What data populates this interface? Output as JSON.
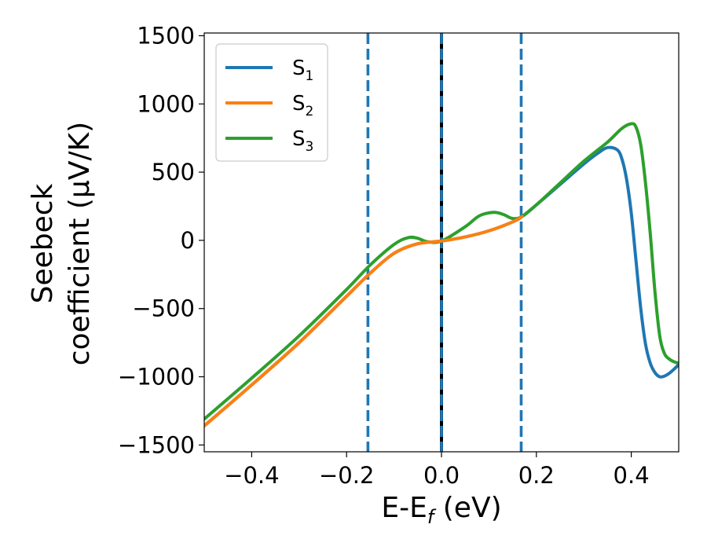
{
  "chart_data": {
    "type": "line",
    "xlabel": "E-E",
    "xlabel_sub": "f",
    "xlabel_unit": " (eV)",
    "ylabel_line1": "Seebeck",
    "ylabel_line2": "coefficient  (μV/K)",
    "xlim": [
      -0.5,
      0.5
    ],
    "ylim": [
      -1550,
      1520
    ],
    "xticks": [
      -0.4,
      -0.2,
      0.0,
      0.2,
      0.4
    ],
    "xtick_labels": [
      "−0.4",
      "−0.2",
      "0.0",
      "0.2",
      "0.4"
    ],
    "yticks": [
      -1500,
      -1000,
      -500,
      0,
      500,
      1000,
      1500
    ],
    "ytick_labels": [
      "−1500",
      "−1000",
      "−500",
      "0",
      "500",
      "1000",
      "1500"
    ],
    "grid": false,
    "legend_placement": "top-left",
    "series": [
      {
        "name": "S",
        "name_sub": "1",
        "color": "#1f77b4",
        "x": [
          -0.5,
          -0.4,
          -0.3,
          -0.2,
          -0.15,
          -0.1,
          -0.05,
          0.0,
          0.05,
          0.1,
          0.15,
          0.17,
          0.2,
          0.25,
          0.3,
          0.33,
          0.35,
          0.37,
          0.38,
          0.39,
          0.4,
          0.41,
          0.42,
          0.43,
          0.44,
          0.45,
          0.46,
          0.47,
          0.48,
          0.49,
          0.5
        ],
        "y": [
          -1360,
          -1060,
          -750,
          -410,
          -240,
          -95,
          -25,
          -5,
          25,
          70,
          135,
          175,
          260,
          410,
          560,
          640,
          680,
          665,
          600,
          450,
          200,
          -150,
          -500,
          -760,
          -900,
          -970,
          -1000,
          -995,
          -975,
          -945,
          -910
        ]
      },
      {
        "name": "S",
        "name_sub": "2",
        "color": "#ff7f0e",
        "x": [
          -0.5,
          -0.4,
          -0.3,
          -0.2,
          -0.15,
          -0.1,
          -0.05,
          0.0,
          0.05,
          0.1,
          0.15,
          0.17
        ],
        "y": [
          -1360,
          -1060,
          -750,
          -410,
          -240,
          -95,
          -25,
          -5,
          25,
          70,
          135,
          175
        ]
      },
      {
        "name": "S",
        "name_sub": "3",
        "color": "#2ca02c",
        "x": [
          -0.5,
          -0.4,
          -0.3,
          -0.2,
          -0.15,
          -0.1,
          -0.07,
          -0.05,
          -0.03,
          0.0,
          0.05,
          0.08,
          0.11,
          0.13,
          0.15,
          0.17,
          0.2,
          0.25,
          0.3,
          0.35,
          0.38,
          0.4,
          0.41,
          0.42,
          0.43,
          0.44,
          0.45,
          0.46,
          0.47,
          0.48,
          0.49,
          0.5
        ],
        "y": [
          -1310,
          -1010,
          -700,
          -360,
          -180,
          -30,
          20,
          15,
          -10,
          -5,
          100,
          180,
          205,
          190,
          160,
          175,
          260,
          420,
          580,
          720,
          820,
          855,
          830,
          700,
          420,
          50,
          -380,
          -700,
          -830,
          -870,
          -890,
          -900
        ]
      }
    ],
    "vertical_lines": [
      {
        "x": -0.155,
        "color": "#1f77b4",
        "style": "dashed"
      },
      {
        "x": 0.0,
        "color": "#000000",
        "style": "solid"
      },
      {
        "x": 0.0,
        "color": "#1f77b4",
        "style": "dashed"
      },
      {
        "x": 0.168,
        "color": "#1f77b4",
        "style": "dashed"
      }
    ]
  }
}
